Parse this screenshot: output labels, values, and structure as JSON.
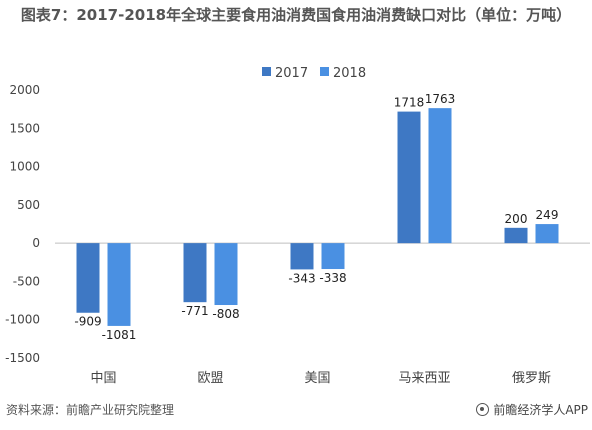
{
  "chart_data": {
    "type": "bar",
    "title": "图表7：2017-2018年全球主要食用油消费国食用油消费缺口对比（单位：万吨）",
    "categories": [
      "中国",
      "欧盟",
      "美国",
      "马来西亚",
      "俄罗斯"
    ],
    "series": [
      {
        "name": "2017",
        "values": [
          -909,
          -771,
          -343,
          1718,
          200
        ],
        "color": "#3e78c4"
      },
      {
        "name": "2018",
        "values": [
          -1081,
          -808,
          -338,
          1763,
          249
        ],
        "color": "#4a90e2"
      }
    ],
    "ylim": [
      -1500,
      2000
    ],
    "yticks": [
      2000,
      1500,
      1000,
      500,
      0,
      -500,
      -1000,
      -1500
    ],
    "legend_position": "top",
    "grid": false
  },
  "footer": {
    "source": "资料来源：前瞻产业研究院整理",
    "brand": "前瞻经济学人APP"
  }
}
